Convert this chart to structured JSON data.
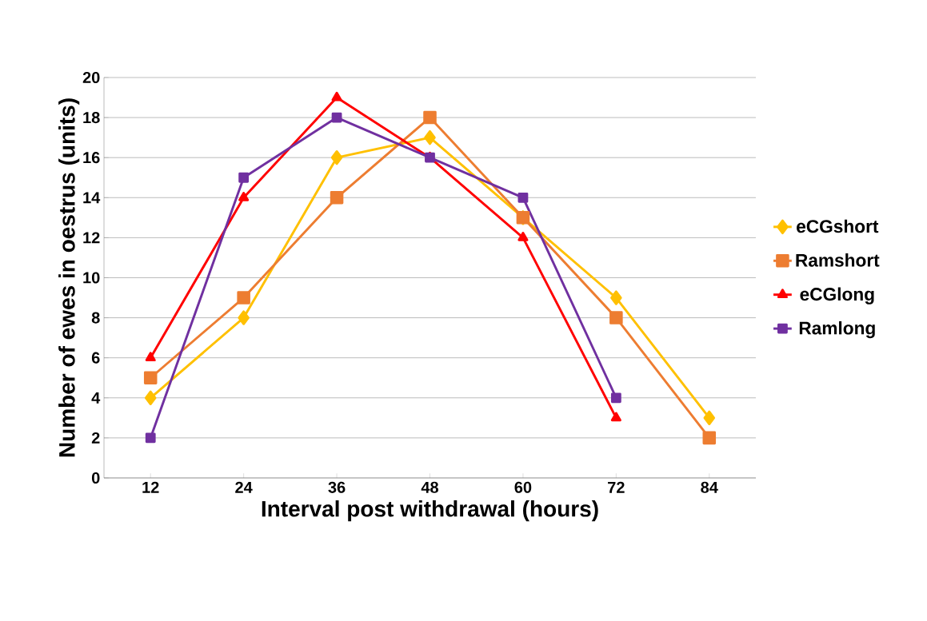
{
  "chart_data": {
    "type": "line",
    "xlabel": "Interval post withdrawal (hours)",
    "ylabel": "Number of ewes in oestrus (units)",
    "categories": [
      "12",
      "24",
      "36",
      "48",
      "60",
      "72",
      "84"
    ],
    "series": [
      {
        "name": "eCGshort",
        "color": "#ffc000",
        "marker": "diamond",
        "values": [
          4,
          8,
          16,
          17,
          13,
          9,
          3
        ]
      },
      {
        "name": "Ramshort",
        "color": "#ed7d31",
        "marker": "square",
        "values": [
          5,
          9,
          14,
          18,
          13,
          8,
          2
        ]
      },
      {
        "name": "eCGlong",
        "color": "#ff0000",
        "marker": "triangle",
        "values": [
          6,
          14,
          19,
          16,
          12,
          3,
          null
        ]
      },
      {
        "name": "Ramlong",
        "color": "#7030a0",
        "marker": "square",
        "values": [
          2,
          15,
          18,
          16,
          14,
          4,
          null
        ]
      }
    ],
    "ylim": [
      0,
      20
    ],
    "yticks": [
      0,
      2,
      4,
      6,
      8,
      10,
      12,
      14,
      16,
      18,
      20
    ],
    "grid": "y",
    "legend": "right"
  }
}
